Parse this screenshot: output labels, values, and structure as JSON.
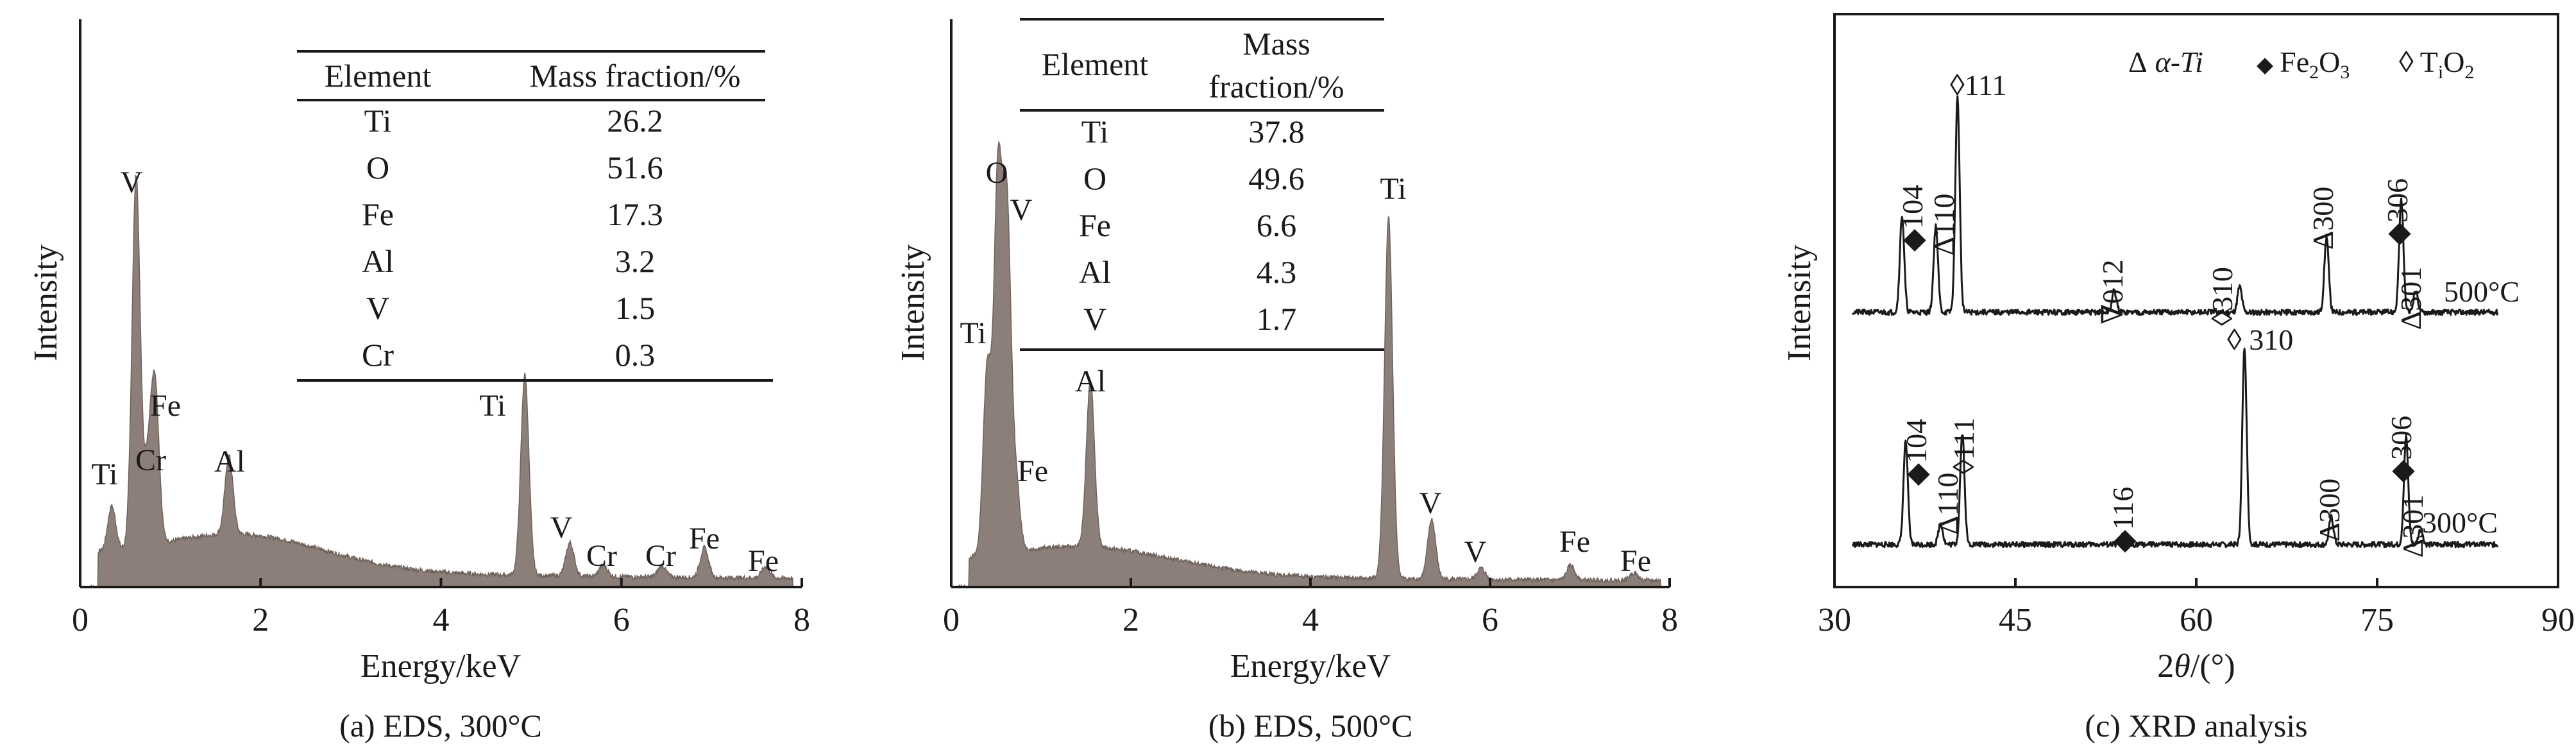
{
  "chart_data": [
    {
      "type": "area",
      "caption": "(a) EDS, 300°C",
      "xlabel": "Energy/keV",
      "ylabel": "Intensity",
      "xlim": [
        0,
        8
      ],
      "xticks": [
        "0",
        "2",
        "4",
        "6",
        "8"
      ],
      "peaks": [
        {
          "label": "Ti",
          "x": 0.35,
          "y": 0.12
        },
        {
          "label": "V",
          "x": 0.62,
          "y": 1.0
        },
        {
          "label": "Cr",
          "x": 0.75,
          "y": 0.2
        },
        {
          "label": "Fe",
          "x": 0.83,
          "y": 0.42
        },
        {
          "label": "Al",
          "x": 1.65,
          "y": 0.21
        },
        {
          "label": "Ti",
          "x": 4.93,
          "y": 0.54
        },
        {
          "label": "V",
          "x": 5.43,
          "y": 0.09
        },
        {
          "label": "Cr",
          "x": 5.8,
          "y": 0.03
        },
        {
          "label": "Cr",
          "x": 6.45,
          "y": 0.03
        },
        {
          "label": "Fe",
          "x": 6.92,
          "y": 0.08
        },
        {
          "label": "Fe",
          "x": 7.6,
          "y": 0.03
        }
      ],
      "table": {
        "headers": [
          "Element",
          "Mass fraction/%"
        ],
        "rows": [
          [
            "Ti",
            "26.2"
          ],
          [
            "O",
            "51.6"
          ],
          [
            "Fe",
            "17.3"
          ],
          [
            "Al",
            "3.2"
          ],
          [
            "V",
            "1.5"
          ],
          [
            "Cr",
            "0.3"
          ]
        ]
      }
    },
    {
      "type": "area",
      "caption": "(b) EDS, 500°C",
      "xlabel": "Energy/keV",
      "ylabel": "Intensity",
      "xlim": [
        0,
        8
      ],
      "xticks": [
        "0",
        "2",
        "4",
        "6",
        "8"
      ],
      "peaks": [
        {
          "label": "Ti",
          "x": 0.4,
          "y": 0.5
        },
        {
          "label": "O",
          "x": 0.52,
          "y": 1.0
        },
        {
          "label": "V",
          "x": 0.62,
          "y": 0.9
        },
        {
          "label": "Fe",
          "x": 0.72,
          "y": 0.18
        },
        {
          "label": "Al",
          "x": 1.55,
          "y": 0.45
        },
        {
          "label": "Ti",
          "x": 4.87,
          "y": 0.97
        },
        {
          "label": "V",
          "x": 5.35,
          "y": 0.16
        },
        {
          "label": "V",
          "x": 5.9,
          "y": 0.03
        },
        {
          "label": "Fe",
          "x": 6.9,
          "y": 0.04
        },
        {
          "label": "Fe",
          "x": 7.6,
          "y": 0.02
        }
      ],
      "table": {
        "headers": [
          "Element",
          "Mass",
          "fraction/%"
        ],
        "rows": [
          [
            "Ti",
            "37.8"
          ],
          [
            "O",
            "49.6"
          ],
          [
            "Fe",
            "6.6"
          ],
          [
            "Al",
            "4.3"
          ],
          [
            "V",
            "1.7"
          ]
        ]
      }
    },
    {
      "type": "line",
      "caption": "(c) XRD analysis",
      "xlabel_main": "2",
      "xlabel_theta": "θ",
      "xlabel_unit": "/(°)",
      "ylabel": "Intensity",
      "xlim": [
        30,
        90
      ],
      "xticks": [
        "30",
        "45",
        "60",
        "75",
        "90"
      ],
      "legend": {
        "alpha_symbol": "Δ",
        "alpha_text": "α-Ti",
        "fe_symbol": "◆",
        "fe_text": "Fe",
        "fe_sub1": "2",
        "fe_mid": "O",
        "fe_sub2": "3",
        "tio_symbol": "◊",
        "tio_text": "T",
        "tio_sub1": "i",
        "tio_mid": "O",
        "tio_sub2": "2"
      },
      "series": [
        {
          "name": "500°C",
          "peaks": [
            {
              "label": "◆104",
              "x": 35.6,
              "y": 0.45
            },
            {
              "label": "Δ110",
              "x": 38.4,
              "y": 0.4
            },
            {
              "label": "◊111",
              "x": 40.2,
              "y": 1.0
            },
            {
              "label": "∇012",
              "x": 53.2,
              "y": 0.1
            },
            {
              "label": "◊310",
              "x": 63.6,
              "y": 0.12
            },
            {
              "label": "Δ300",
              "x": 70.8,
              "y": 0.35
            },
            {
              "label": "◆306",
              "x": 77.0,
              "y": 0.52
            },
            {
              "label": "Δ301",
              "x": 78.2,
              "y": 0.1
            }
          ]
        },
        {
          "name": "300°C",
          "peaks": [
            {
              "label": "◆104",
              "x": 35.9,
              "y": 0.48
            },
            {
              "label": "Δ110",
              "x": 38.8,
              "y": 0.1
            },
            {
              "label": "◊111",
              "x": 40.6,
              "y": 0.52
            },
            {
              "label": "◆116",
              "x": 53.9,
              "y": 0.04
            },
            {
              "label": "◊ 310",
              "x": 64.0,
              "y": 0.92
            },
            {
              "label": "Δ300",
              "x": 71.2,
              "y": 0.13
            },
            {
              "label": "◆306",
              "x": 77.4,
              "y": 0.5
            },
            {
              "label": "Δ301",
              "x": 78.6,
              "y": 0.07
            }
          ]
        }
      ]
    }
  ]
}
